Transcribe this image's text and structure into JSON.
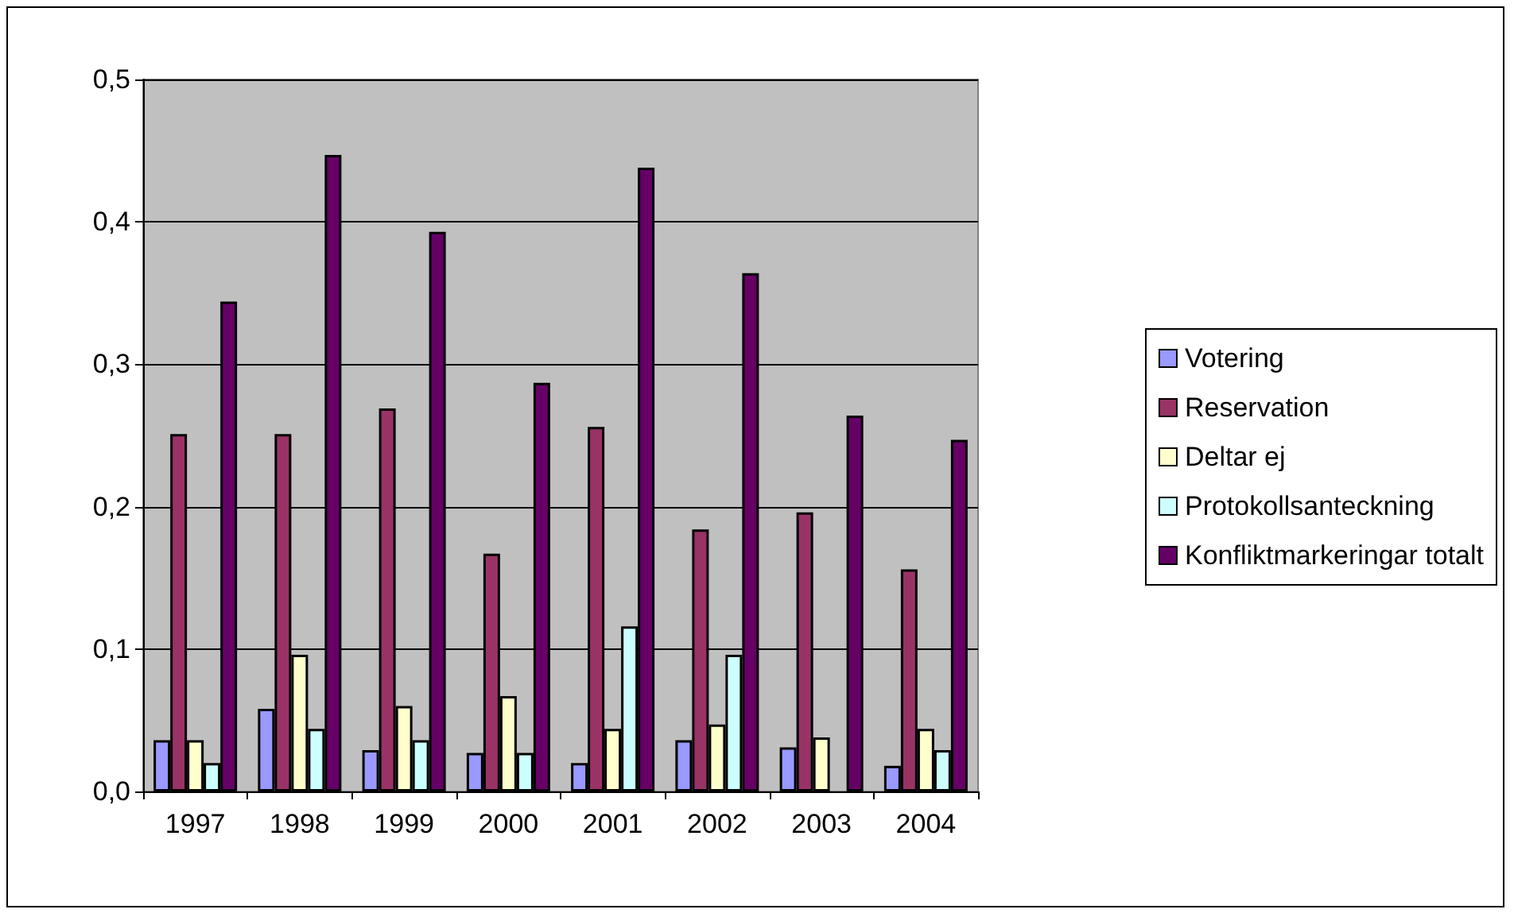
{
  "chart_data": {
    "type": "bar",
    "categories": [
      "1997",
      "1998",
      "1999",
      "2000",
      "2001",
      "2002",
      "2003",
      "2004"
    ],
    "series": [
      {
        "name": "Votering",
        "color": "#9999ff",
        "values": [
          0.036,
          0.058,
          0.029,
          0.027,
          0.02,
          0.036,
          0.031,
          0.018
        ]
      },
      {
        "name": "Reservation",
        "color": "#993366",
        "values": [
          0.251,
          0.251,
          0.269,
          0.167,
          0.256,
          0.184,
          0.196,
          0.156
        ]
      },
      {
        "name": "Deltar ej",
        "color": "#ffffcc",
        "values": [
          0.036,
          0.096,
          0.06,
          0.067,
          0.044,
          0.047,
          0.038,
          0.044
        ]
      },
      {
        "name": "Protokollsanteckning",
        "color": "#ccffff",
        "values": [
          0.02,
          0.044,
          0.036,
          0.027,
          0.116,
          0.096,
          null,
          0.029
        ]
      },
      {
        "name": "Konfliktmarkeringar totalt",
        "color": "#660066",
        "values": [
          0.344,
          0.447,
          0.393,
          0.287,
          0.438,
          0.364,
          0.264,
          0.247
        ]
      }
    ],
    "ylim": [
      0,
      0.5
    ],
    "yticks": [
      {
        "value": 0,
        "label": "0,0"
      },
      {
        "value": 0.1,
        "label": "0,1"
      },
      {
        "value": 0.2,
        "label": "0,2"
      },
      {
        "value": 0.3,
        "label": "0,3"
      },
      {
        "value": 0.4,
        "label": "0,4"
      },
      {
        "value": 0.5,
        "label": "0,5"
      }
    ],
    "grid": "y",
    "legend": "right"
  }
}
